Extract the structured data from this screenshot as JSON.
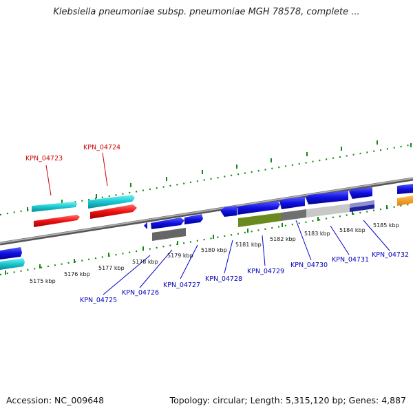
{
  "title": "Klebsiella pneumoniae subsp. pneumoniae MGH 78578, complete ...",
  "footer": {
    "accession": "Accession: NC_009648",
    "stats": "Topology: circular; Length: 5,315,120 bp; Genes: 4,887"
  },
  "scale_labels": [
    "5175 kbp",
    "5176 kbp",
    "5177 kbp",
    "5178 kbp",
    "5179 kbp",
    "5180 kbp",
    "5181 kbp",
    "5182 kbp",
    "5183 kbp",
    "5184 kbp",
    "5185 kbp"
  ],
  "gene_labels": {
    "top": [
      "KPN_04723",
      "KPN_04724"
    ],
    "bottom": [
      "KPN_04725",
      "KPN_04726",
      "KPN_04727",
      "KPN_04728",
      "KPN_04729",
      "KPN_04730",
      "KPN_04731",
      "KPN_04732"
    ]
  },
  "colors": {
    "cds_blue": "#1010e0",
    "cds_cyan": "#18c8d0",
    "cds_red": "#ee1010",
    "cds_orange": "#ff9900",
    "gc_olive": "#6a8a20",
    "gc_dark": "#666666",
    "gc_light": "#c8c8c8",
    "backbone": "#888888",
    "ticks": "#118811"
  }
}
